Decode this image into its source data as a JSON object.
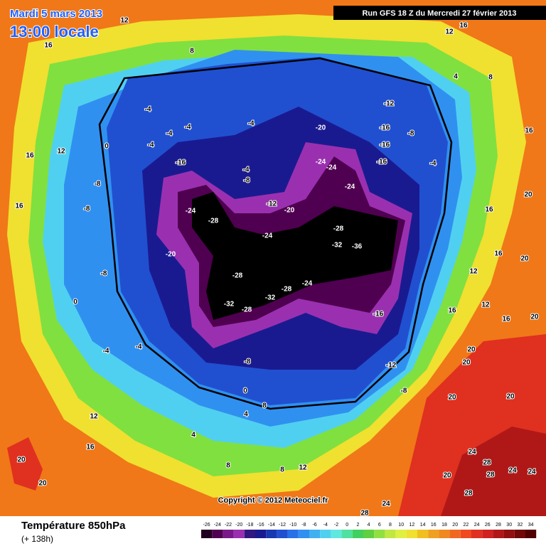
{
  "header": {
    "date": "Mardi 5 mars 2013",
    "time": "13:00 locale",
    "run": "Run GFS 18 Z du Mercredi 27 février 2013"
  },
  "map": {
    "copyright": "Copyright © 2012 Meteociel.fr",
    "contour_labels": [
      -28,
      -24,
      -20,
      -32,
      -28,
      -32,
      -28,
      -24,
      -28,
      -32,
      -36,
      -28,
      -24,
      -24,
      -24,
      -24,
      -20,
      -20,
      -12,
      -12,
      -16,
      -16,
      -16,
      -8,
      -4,
      -16,
      -12,
      -8,
      -8,
      0,
      4,
      4,
      8,
      8,
      12,
      8,
      -16,
      -4,
      -8,
      -4,
      -4,
      -4,
      -4,
      -4,
      0,
      -8,
      -8,
      -8,
      -4,
      -4,
      0,
      12,
      16,
      16,
      16,
      12,
      8,
      12,
      16,
      20,
      20,
      12,
      16,
      4,
      8,
      16,
      20,
      16,
      16,
      12,
      16,
      12,
      16,
      20,
      20,
      20,
      20,
      24,
      28,
      28,
      24,
      24,
      28,
      20,
      24,
      28,
      20,
      20
    ]
  },
  "footer": {
    "title": "Température 850hPa",
    "lead": "(+ 138h)"
  },
  "legend": {
    "scale": [
      {
        "value": -26,
        "color": "#200020"
      },
      {
        "value": -24,
        "color": "#500050"
      },
      {
        "value": -22,
        "color": "#7a1a8a"
      },
      {
        "value": -20,
        "color": "#9a30b0"
      },
      {
        "value": -18,
        "color": "#301880"
      },
      {
        "value": -16,
        "color": "#1a1a90"
      },
      {
        "value": -14,
        "color": "#1838b0"
      },
      {
        "value": -12,
        "color": "#2050d0"
      },
      {
        "value": -10,
        "color": "#2870e8"
      },
      {
        "value": -8,
        "color": "#3090f0"
      },
      {
        "value": -6,
        "color": "#40b0f0"
      },
      {
        "value": -4,
        "color": "#50d0f0"
      },
      {
        "value": -2,
        "color": "#60e8e0"
      },
      {
        "value": 0,
        "color": "#50e0a0"
      },
      {
        "value": 2,
        "color": "#40d060"
      },
      {
        "value": 4,
        "color": "#60d040"
      },
      {
        "value": 6,
        "color": "#90e040"
      },
      {
        "value": 8,
        "color": "#c0e840"
      },
      {
        "value": 10,
        "color": "#e0f040"
      },
      {
        "value": 12,
        "color": "#f0e030"
      },
      {
        "value": 14,
        "color": "#f0c020"
      },
      {
        "value": 16,
        "color": "#f0a020"
      },
      {
        "value": 18,
        "color": "#f08820"
      },
      {
        "value": 20,
        "color": "#f06820"
      },
      {
        "value": 22,
        "color": "#f04820"
      },
      {
        "value": 24,
        "color": "#e03020"
      },
      {
        "value": 26,
        "color": "#d02020"
      },
      {
        "value": 28,
        "color": "#b01818"
      },
      {
        "value": 30,
        "color": "#901010"
      },
      {
        "value": 32,
        "color": "#700808"
      },
      {
        "value": 34,
        "color": "#500000"
      }
    ]
  }
}
